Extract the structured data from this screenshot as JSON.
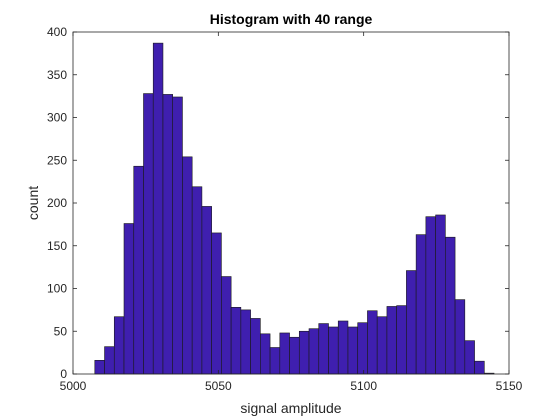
{
  "chart_data": {
    "type": "bar",
    "title": "Histogram with 40 range",
    "xlabel": "signal amplitude",
    "ylabel": "count",
    "xlim": [
      5000,
      5150
    ],
    "ylim": [
      0,
      400
    ],
    "xticks": [
      "5000",
      "5050",
      "5100",
      "5150"
    ],
    "yticks": [
      "0",
      "50",
      "100",
      "150",
      "200",
      "250",
      "300",
      "350",
      "400"
    ],
    "grid": false,
    "bar_color": "#3f1faf",
    "edge_color": "#1a1a1a",
    "bin_start": 5007.5,
    "bin_width": 3.35,
    "values": [
      16,
      32,
      67,
      176,
      243,
      328,
      387,
      327,
      324,
      254,
      219,
      196,
      165,
      114,
      78,
      75,
      65,
      47,
      31,
      48,
      43,
      50,
      53,
      59,
      55,
      62,
      55,
      60,
      74,
      67,
      79,
      80,
      121,
      163,
      184,
      186,
      160,
      87,
      39,
      15,
      1
    ]
  }
}
